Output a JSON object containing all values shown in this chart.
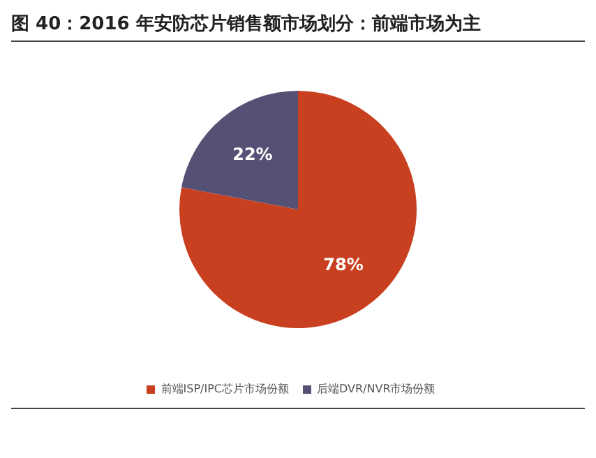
{
  "chart_data": {
    "type": "pie",
    "title": "图 40：2016 年安防芯片销售额市场划分：前端市场为主",
    "categories": [
      "前端ISP/IPC芯片市场份额",
      "后端DVR/NVR市场份额"
    ],
    "values": [
      78,
      22
    ],
    "colors": [
      "#c8401f",
      "#545175"
    ],
    "value_labels": [
      "78%",
      "22%"
    ],
    "legend": "bottom"
  }
}
